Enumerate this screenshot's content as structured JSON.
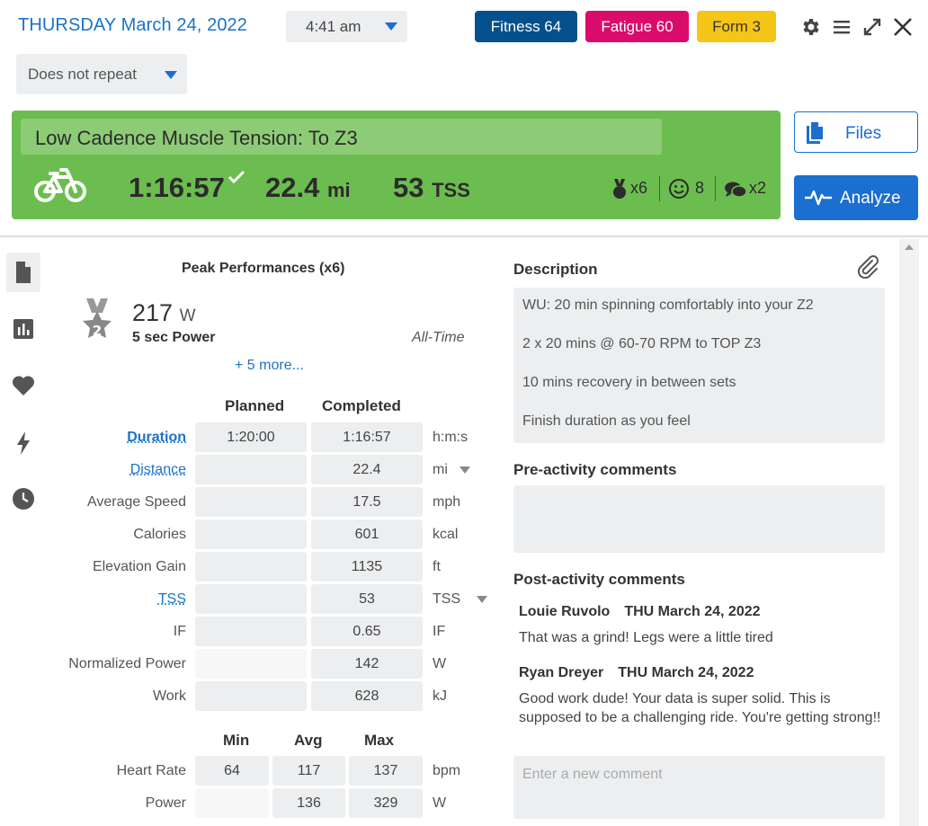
{
  "header": {
    "date_title": "THURSDAY March 24, 2022",
    "time": "4:41 am",
    "repeat": "Does not repeat",
    "badges": [
      {
        "label": "Fitness 64",
        "color": "#05508c"
      },
      {
        "label": "Fatigue 60",
        "color": "#db0b6b"
      },
      {
        "label": "Form 3",
        "color": "#f5c518"
      }
    ],
    "icons": [
      "gear-icon",
      "menu-icon",
      "expand-icon",
      "close-icon"
    ]
  },
  "workout": {
    "title": "Low Cadence Muscle Tension: To Z3",
    "sport_icon": "bike-icon",
    "duration": "1:16:57",
    "distance": "22.4",
    "distance_unit": "mi",
    "tss": "53",
    "tss_unit": "TSS",
    "medals": "x6",
    "feel": "8",
    "comments": "x2",
    "color": "#6cbd4f"
  },
  "buttons": {
    "files": "Files",
    "analyze": "Analyze"
  },
  "nav": [
    "file-icon",
    "chart-icon",
    "heart-icon",
    "lightning-icon",
    "clock-icon"
  ],
  "peak": {
    "title": "Peak Performances (x6)",
    "value": "217",
    "unit": "W",
    "label": "5 sec Power",
    "period": "All-Time",
    "medal_rank": "2",
    "more": "+ 5 more..."
  },
  "summary": {
    "col_planned": "Planned",
    "col_completed": "Completed",
    "rows": [
      {
        "label": "Duration",
        "planned": "1:20:00",
        "completed": "1:16:57",
        "unit": "h:m:s"
      },
      {
        "label": "Distance",
        "planned": "",
        "completed": "22.4",
        "unit": "mi"
      },
      {
        "label": "Average Speed",
        "planned": "",
        "completed": "17.5",
        "unit": "mph"
      },
      {
        "label": "Calories",
        "planned": "",
        "completed": "601",
        "unit": "kcal"
      },
      {
        "label": "Elevation Gain",
        "planned": "",
        "completed": "1135",
        "unit": "ft"
      },
      {
        "label": "TSS",
        "planned": "",
        "completed": "53",
        "unit": "TSS"
      },
      {
        "label": "IF",
        "planned": "",
        "completed": "0.65",
        "unit": "IF"
      },
      {
        "label": "Normalized Power",
        "planned": "",
        "completed": "142",
        "unit": "W"
      },
      {
        "label": "Work",
        "planned": "",
        "completed": "628",
        "unit": "kJ"
      }
    ]
  },
  "minmax": {
    "col_min": "Min",
    "col_avg": "Avg",
    "col_max": "Max",
    "rows": [
      {
        "label": "Heart Rate",
        "min": "64",
        "avg": "117",
        "max": "137",
        "unit": "bpm"
      },
      {
        "label": "Power",
        "min": "",
        "avg": "136",
        "max": "329",
        "unit": "W"
      }
    ]
  },
  "description": {
    "title": "Description",
    "lines": [
      "WU: 20 min spinning comfortably into your Z2",
      "2 x 20 mins @ 60-70 RPM to TOP Z3",
      "10 mins recovery in between sets",
      "Finish duration as you feel"
    ]
  },
  "pre_comments": {
    "title": "Pre-activity comments"
  },
  "post_comments": {
    "title": "Post-activity comments",
    "items": [
      {
        "author": "Louie Ruvolo",
        "date": "THU March 24, 2022",
        "text": "That was a grind! Legs were a little tired"
      },
      {
        "author": "Ryan Dreyer",
        "date": "THU March 24, 2022",
        "text": "Good work dude! Your data is super solid. This is supposed to be a challenging ride. You're getting strong!!"
      }
    ],
    "placeholder": "Enter a new comment"
  }
}
